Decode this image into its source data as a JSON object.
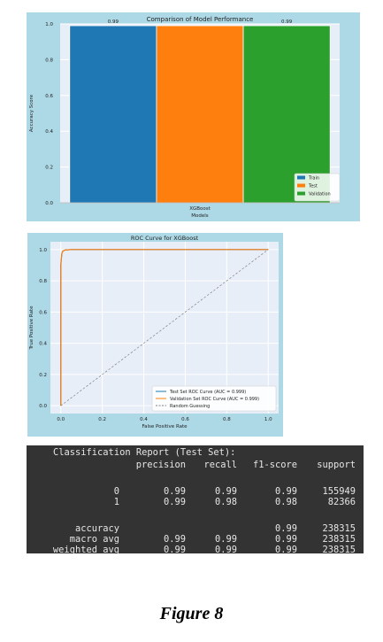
{
  "chart_data": [
    {
      "type": "bar",
      "title": "Comparison of Model Performance",
      "xlabel": "Models",
      "ylabel": "Accuracy Score",
      "categories": [
        "XGBoost"
      ],
      "series": [
        {
          "name": "Train",
          "values": [
            0.99
          ],
          "color": "#1f77b4"
        },
        {
          "name": "Test",
          "values": [
            0.99
          ],
          "color": "#ff7f0e"
        },
        {
          "name": "Validation",
          "values": [
            0.99
          ],
          "color": "#2ca02c"
        }
      ],
      "data_labels": [
        "0.99",
        "",
        "0.99"
      ],
      "ylim": [
        0,
        1.0
      ],
      "yticks": [
        "0.0",
        "0.2",
        "0.4",
        "0.6",
        "0.8",
        "1.0"
      ],
      "grid": true,
      "legend": "bottom-right",
      "background": "#add8e6",
      "plot_background": "#e8eef8"
    },
    {
      "type": "line",
      "title": "ROC Curve for XGBoost",
      "xlabel": "False Positive Rate",
      "ylabel": "True Positive Rate",
      "xlim": [
        0,
        1.0
      ],
      "ylim": [
        0,
        1.0
      ],
      "xticks": [
        "0.0",
        "0.2",
        "0.4",
        "0.6",
        "0.8",
        "1.0"
      ],
      "yticks": [
        "0.0",
        "0.2",
        "0.4",
        "0.6",
        "0.8",
        "1.0"
      ],
      "grid": true,
      "legend": "bottom-right",
      "background": "#add8e6",
      "plot_background": "#e8eef8",
      "series": [
        {
          "name": "Test Set ROC Curve (AUC = 0.999)",
          "color": "#1f77b4",
          "dash": false,
          "x": [
            0,
            0.0,
            0.005,
            0.01,
            0.02,
            0.05,
            1.0
          ],
          "y": [
            0,
            0.9,
            0.975,
            0.99,
            0.997,
            1.0,
            1.0
          ]
        },
        {
          "name": "Validation Set ROC Curve (AUC = 0.999)",
          "color": "#ff7f0e",
          "dash": false,
          "x": [
            0,
            0.0,
            0.005,
            0.01,
            0.02,
            0.05,
            1.0
          ],
          "y": [
            0,
            0.9,
            0.975,
            0.99,
            0.997,
            1.0,
            1.0
          ]
        },
        {
          "name": "Random Guessing",
          "color": "#808080",
          "dash": true,
          "x": [
            0,
            1.0
          ],
          "y": [
            0,
            1.0
          ]
        }
      ]
    },
    {
      "type": "table",
      "title": "Classification Report (Test Set):",
      "columns": [
        "precision",
        "recall",
        "f1-score",
        "support"
      ],
      "rows": [
        {
          "label": "0",
          "values": [
            "0.99",
            "0.99",
            "0.99",
            "155949"
          ]
        },
        {
          "label": "1",
          "values": [
            "0.99",
            "0.98",
            "0.98",
            "82366"
          ]
        },
        {
          "label": "accuracy",
          "values": [
            "",
            "",
            "0.99",
            "238315"
          ]
        },
        {
          "label": "macro avg",
          "values": [
            "0.99",
            "0.99",
            "0.99",
            "238315"
          ]
        },
        {
          "label": "weighted avg",
          "values": [
            "0.99",
            "0.99",
            "0.99",
            "238315"
          ]
        }
      ],
      "background": "#333333"
    }
  ],
  "caption": "Figure 8"
}
